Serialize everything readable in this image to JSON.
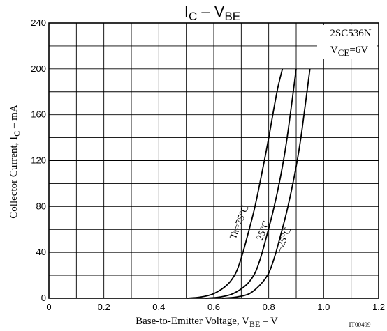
{
  "chart_data": {
    "type": "line",
    "title": {
      "main": "I",
      "sub": "C",
      "dash": " – ",
      "main2": "V",
      "sub2": "BE"
    },
    "part_number": "2SC536N",
    "condition": {
      "prefix": "V",
      "sub": "CE",
      "suffix": "=6V"
    },
    "xlabel": {
      "pre": "Base-to-Emitter Voltage, V",
      "sub": "BE",
      "post": " – V"
    },
    "ylabel": {
      "pre": "Collector Current, I",
      "sub": "C",
      "post": " – mA"
    },
    "xlim": [
      0,
      1.2
    ],
    "ylim": [
      0,
      240
    ],
    "x_ticks": [
      "0",
      "0.2",
      "0.4",
      "0.6",
      "0.8",
      "1.0",
      "1.2"
    ],
    "y_ticks": [
      "0",
      "40",
      "80",
      "120",
      "160",
      "200",
      "240"
    ],
    "grid": true,
    "figure_code": "IT00499",
    "series": [
      {
        "name": "Ta=75°C",
        "x": [
          0.5,
          0.55,
          0.6,
          0.65,
          0.68,
          0.7,
          0.72,
          0.75,
          0.78,
          0.8,
          0.83,
          0.85
        ],
        "y": [
          0,
          1,
          4,
          12,
          22,
          35,
          52,
          80,
          115,
          140,
          180,
          200
        ]
      },
      {
        "name": "25°C",
        "x": [
          0.57,
          0.62,
          0.67,
          0.72,
          0.75,
          0.77,
          0.79,
          0.82,
          0.85,
          0.87,
          0.9
        ],
        "y": [
          0,
          1,
          4,
          12,
          22,
          35,
          52,
          80,
          115,
          145,
          200
        ]
      },
      {
        "name": "–25°C",
        "x": [
          0.63,
          0.68,
          0.73,
          0.77,
          0.8,
          0.82,
          0.84,
          0.87,
          0.9,
          0.92,
          0.95
        ],
        "y": [
          0,
          1,
          4,
          12,
          22,
          35,
          52,
          80,
          115,
          145,
          200
        ]
      }
    ]
  }
}
